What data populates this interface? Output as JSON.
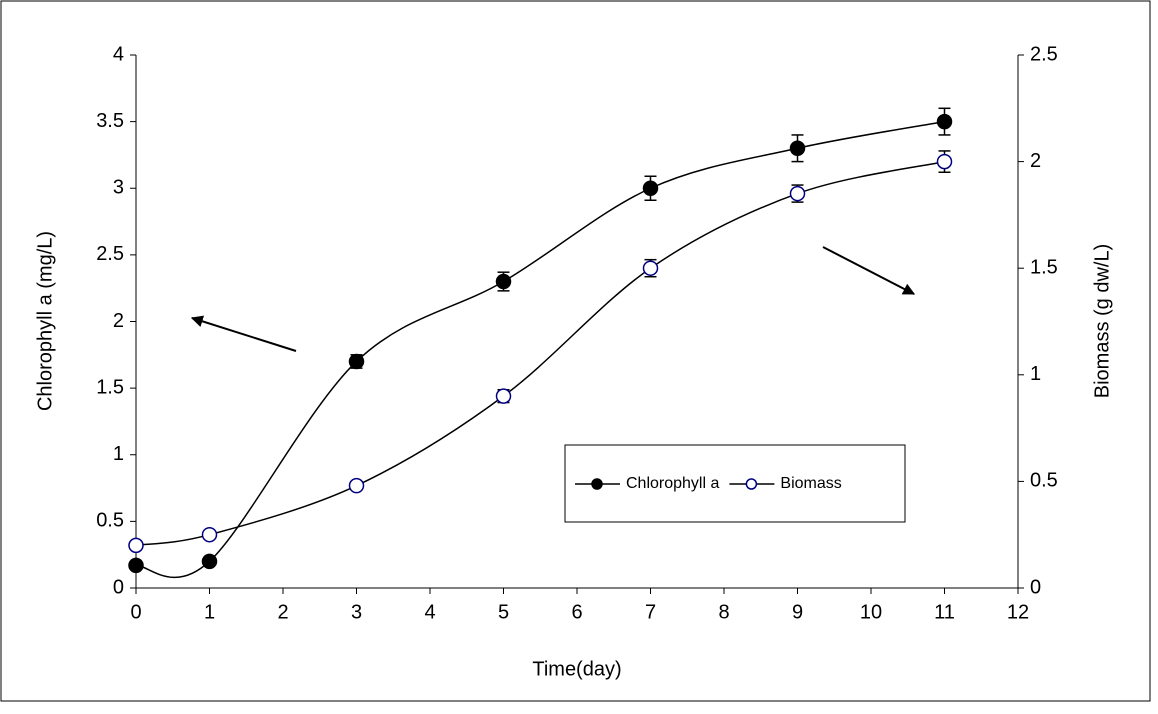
{
  "chart_data": {
    "type": "line",
    "xlabel": "Time(day)",
    "ylabel": "Chlorophyll a (mg/L)",
    "y2label": "Biomass (g dw/L)",
    "x": [
      0,
      1,
      3,
      5,
      7,
      9,
      11
    ],
    "series": [
      {
        "name": "Chlorophyll a",
        "color": "#000000",
        "marker_fill": "#000000",
        "marker_edge": "#000000",
        "values": [
          0.17,
          0.2,
          1.7,
          2.3,
          3.0,
          3.3,
          3.5
        ],
        "errors": [
          0.02,
          0.02,
          0.05,
          0.07,
          0.09,
          0.1,
          0.1
        ]
      },
      {
        "name": "Biomass",
        "color": "#000000",
        "marker_fill": "#ffffff",
        "marker_edge": "#000080",
        "axis": "y2",
        "values": [
          0.2,
          0.25,
          0.48,
          0.9,
          1.5,
          1.85,
          2.0
        ],
        "errors": [
          0.01,
          0.01,
          0.01,
          0.03,
          0.04,
          0.04,
          0.05
        ]
      }
    ],
    "xlim": [
      0,
      12
    ],
    "xticks": [
      0,
      1,
      2,
      3,
      4,
      5,
      6,
      7,
      8,
      9,
      10,
      11,
      12
    ],
    "ylim": [
      0,
      4
    ],
    "yticks": [
      0,
      0.5,
      1,
      1.5,
      2,
      2.5,
      3,
      3.5,
      4
    ],
    "y2lim": [
      0,
      2.5
    ],
    "y2ticks": [
      0,
      0.5,
      1,
      1.5,
      2,
      2.5
    ],
    "smooth": true,
    "grid": false
  }
}
